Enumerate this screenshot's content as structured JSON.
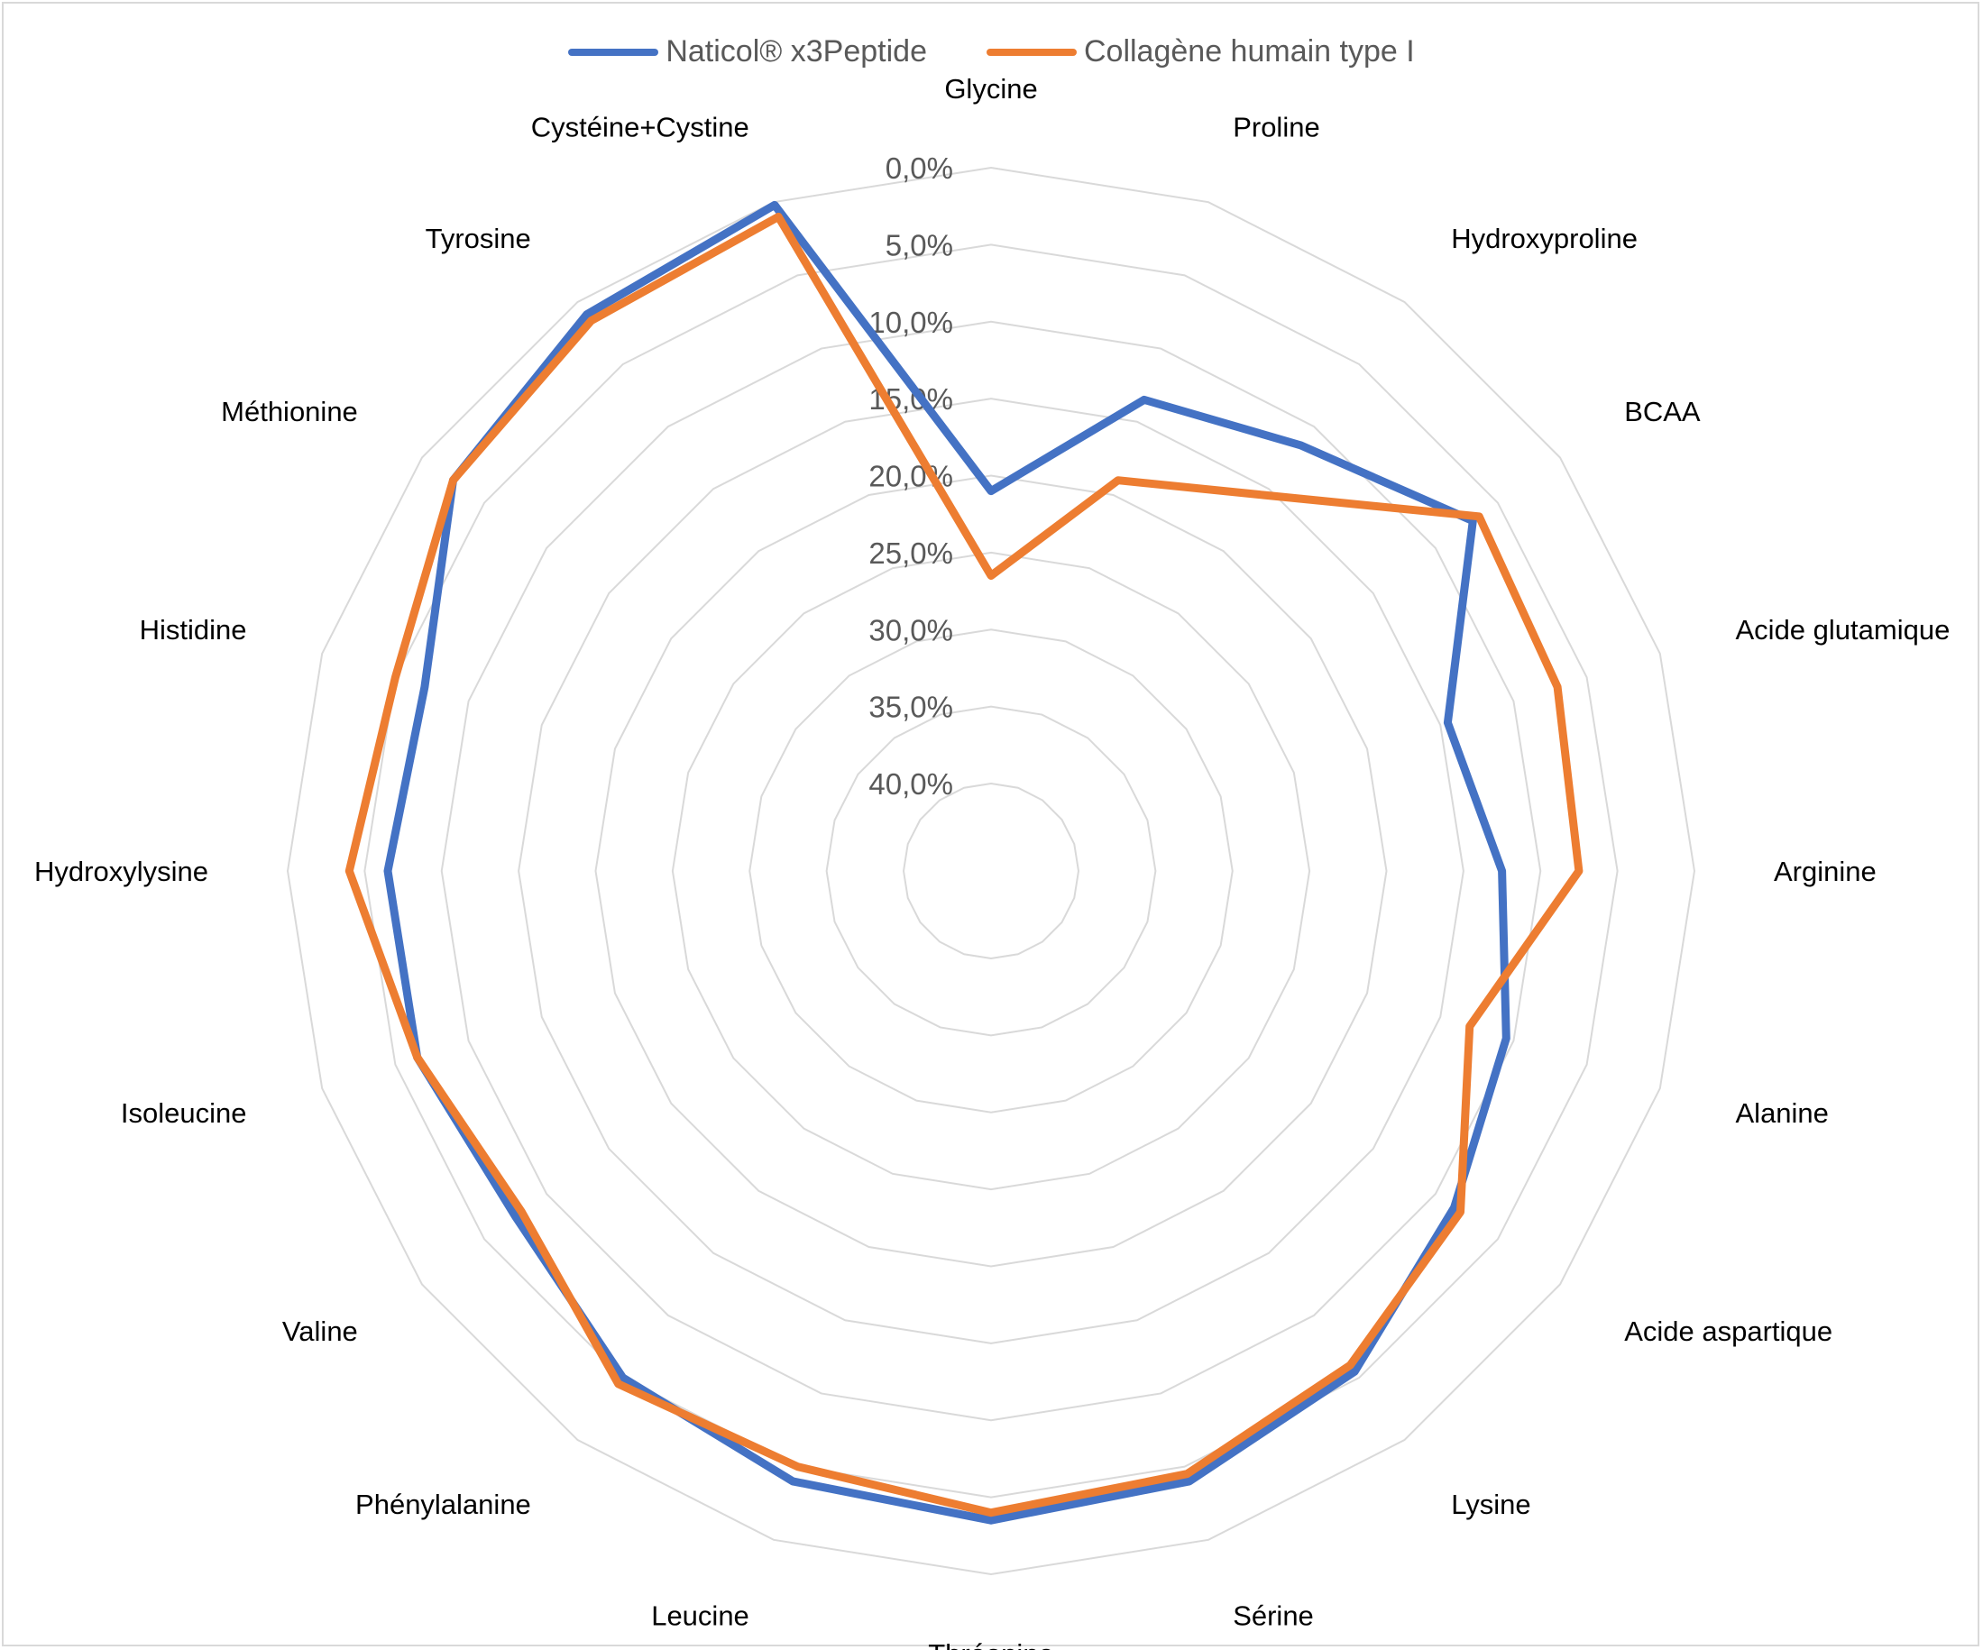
{
  "chart_data": {
    "type": "radar",
    "title": "",
    "axis_tick_labels": [
      "0,0%",
      "5,0%",
      "10,0%",
      "15,0%",
      "20,0%",
      "25,0%",
      "30,0%",
      "35,0%",
      "40,0%"
    ],
    "axis_range": [
      0,
      40
    ],
    "axis_reversed": true,
    "grid": true,
    "legend_position": "top",
    "categories": [
      "Glycine",
      "Proline",
      "Hydroxyproline",
      "BCAA",
      "Acide glutamique",
      "Arginine",
      "Alanine",
      "Acide aspartique",
      "Lysine",
      "Sérine",
      "Thréonine",
      "Leucine",
      "Phénylalanine",
      "Valine",
      "Isoleucine",
      "Hydroxylysine",
      "Histidine",
      "Méthionine",
      "Tyrosine",
      "Cystéine+Cystine"
    ],
    "series": [
      {
        "name": "Naticol® x3Peptide",
        "color": "#4472c4",
        "values": [
          21.0,
          13.5,
          11.5,
          7.0,
          14.5,
          12.5,
          10.5,
          8.5,
          5.5,
          4.0,
          3.5,
          4.0,
          5.0,
          7.5,
          6.5,
          6.5,
          7.0,
          2.5,
          1.0,
          0.2
        ]
      },
      {
        "name": "Collagène humain type I",
        "color": "#ed7d31",
        "values": [
          26.5,
          19.0,
          15.5,
          6.5,
          7.0,
          7.5,
          13.0,
          8.0,
          6.0,
          4.5,
          4.0,
          5.0,
          4.5,
          8.0,
          6.5,
          4.0,
          5.0,
          2.5,
          1.5,
          1.0
        ]
      }
    ]
  }
}
